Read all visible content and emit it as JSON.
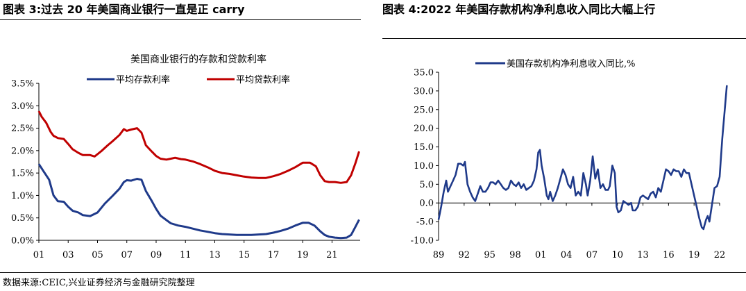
{
  "left_title": "图表 3:过去 20 年美国商业银行一直是正 carry",
  "right_title": "图表 4:2022 年美国存款机构净利息收入同比大幅上行",
  "source": "数据来源:CEIC,兴业证券经济与金融研究院整理",
  "chart_data": [
    {
      "type": "line",
      "title": "美国商业银行的存款和贷款利率",
      "xlabel": "",
      "ylabel": "",
      "x_ticks": [
        "01",
        "03",
        "05",
        "07",
        "09",
        "11",
        "13",
        "15",
        "17",
        "19",
        "21"
      ],
      "y_ticks": [
        "0.0%",
        "0.5%",
        "1.0%",
        "1.5%",
        "2.0%",
        "2.5%",
        "3.0%",
        "3.5%"
      ],
      "xlim": [
        2001,
        2022.92
      ],
      "ylim": [
        0,
        3.5
      ],
      "legend_position": "top",
      "colors": {
        "deposit": "#1f3a8a",
        "loan": "#c00000"
      },
      "series": [
        {
          "name": "平均存款利率",
          "color": "#1f3a8a",
          "points": [
            [
              2001,
              1.7
            ],
            [
              2001.3,
              1.55
            ],
            [
              2001.7,
              1.35
            ],
            [
              2002,
              1.0
            ],
            [
              2002.3,
              0.87
            ],
            [
              2002.7,
              0.86
            ],
            [
              2003,
              0.75
            ],
            [
              2003.3,
              0.66
            ],
            [
              2003.7,
              0.62
            ],
            [
              2004,
              0.56
            ],
            [
              2004.5,
              0.54
            ],
            [
              2005,
              0.62
            ],
            [
              2005.5,
              0.82
            ],
            [
              2006,
              0.98
            ],
            [
              2006.5,
              1.15
            ],
            [
              2006.8,
              1.3
            ],
            [
              2007,
              1.34
            ],
            [
              2007.3,
              1.33
            ],
            [
              2007.7,
              1.37
            ],
            [
              2008,
              1.35
            ],
            [
              2008.3,
              1.1
            ],
            [
              2008.7,
              0.88
            ],
            [
              2009,
              0.7
            ],
            [
              2009.3,
              0.55
            ],
            [
              2009.7,
              0.45
            ],
            [
              2010,
              0.38
            ],
            [
              2010.5,
              0.33
            ],
            [
              2011,
              0.3
            ],
            [
              2011.5,
              0.26
            ],
            [
              2012,
              0.22
            ],
            [
              2012.5,
              0.19
            ],
            [
              2013,
              0.16
            ],
            [
              2013.5,
              0.14
            ],
            [
              2014,
              0.13
            ],
            [
              2014.5,
              0.12
            ],
            [
              2015,
              0.12
            ],
            [
              2015.5,
              0.12
            ],
            [
              2016,
              0.13
            ],
            [
              2016.5,
              0.14
            ],
            [
              2017,
              0.17
            ],
            [
              2017.5,
              0.21
            ],
            [
              2018,
              0.26
            ],
            [
              2018.5,
              0.33
            ],
            [
              2019,
              0.39
            ],
            [
              2019.4,
              0.39
            ],
            [
              2019.8,
              0.33
            ],
            [
              2020.2,
              0.2
            ],
            [
              2020.5,
              0.12
            ],
            [
              2020.8,
              0.08
            ],
            [
              2021.2,
              0.06
            ],
            [
              2021.6,
              0.05
            ],
            [
              2022,
              0.06
            ],
            [
              2022.3,
              0.12
            ],
            [
              2022.6,
              0.3
            ],
            [
              2022.85,
              0.46
            ]
          ]
        },
        {
          "name": "平均贷款利率",
          "color": "#c00000",
          "points": [
            [
              2001,
              2.88
            ],
            [
              2001.2,
              2.75
            ],
            [
              2001.5,
              2.62
            ],
            [
              2001.8,
              2.42
            ],
            [
              2002,
              2.33
            ],
            [
              2002.3,
              2.28
            ],
            [
              2002.7,
              2.26
            ],
            [
              2003,
              2.15
            ],
            [
              2003.3,
              2.03
            ],
            [
              2003.7,
              1.95
            ],
            [
              2004,
              1.9
            ],
            [
              2004.5,
              1.9
            ],
            [
              2004.8,
              1.87
            ],
            [
              2005,
              1.92
            ],
            [
              2005.3,
              2.0
            ],
            [
              2005.7,
              2.12
            ],
            [
              2006,
              2.2
            ],
            [
              2006.5,
              2.35
            ],
            [
              2006.8,
              2.48
            ],
            [
              2007,
              2.44
            ],
            [
              2007.3,
              2.47
            ],
            [
              2007.7,
              2.5
            ],
            [
              2008,
              2.4
            ],
            [
              2008.3,
              2.12
            ],
            [
              2008.7,
              1.98
            ],
            [
              2009,
              1.88
            ],
            [
              2009.3,
              1.82
            ],
            [
              2009.7,
              1.8
            ],
            [
              2010,
              1.82
            ],
            [
              2010.3,
              1.84
            ],
            [
              2010.7,
              1.81
            ],
            [
              2011,
              1.8
            ],
            [
              2011.5,
              1.76
            ],
            [
              2012,
              1.7
            ],
            [
              2012.5,
              1.63
            ],
            [
              2013,
              1.55
            ],
            [
              2013.5,
              1.5
            ],
            [
              2014,
              1.48
            ],
            [
              2014.5,
              1.45
            ],
            [
              2015,
              1.42
            ],
            [
              2015.5,
              1.4
            ],
            [
              2016,
              1.39
            ],
            [
              2016.5,
              1.39
            ],
            [
              2017,
              1.43
            ],
            [
              2017.5,
              1.48
            ],
            [
              2018,
              1.55
            ],
            [
              2018.5,
              1.63
            ],
            [
              2019,
              1.73
            ],
            [
              2019.5,
              1.73
            ],
            [
              2019.9,
              1.65
            ],
            [
              2020.2,
              1.45
            ],
            [
              2020.5,
              1.32
            ],
            [
              2020.8,
              1.3
            ],
            [
              2021.2,
              1.3
            ],
            [
              2021.6,
              1.28
            ],
            [
              2022,
              1.3
            ],
            [
              2022.3,
              1.45
            ],
            [
              2022.6,
              1.72
            ],
            [
              2022.85,
              1.98
            ]
          ]
        }
      ]
    },
    {
      "type": "line",
      "title": "",
      "xlabel": "",
      "ylabel": "",
      "x_ticks": [
        "89",
        "92",
        "95",
        "98",
        "01",
        "04",
        "07",
        "10",
        "13",
        "16",
        "19",
        "22"
      ],
      "y_ticks": [
        "-10.0",
        "-5.0",
        "0.0",
        "5.0",
        "10.0",
        "15.0",
        "20.0",
        "25.0",
        "30.0",
        "35.0"
      ],
      "xlim": [
        1989,
        2022
      ],
      "ylim": [
        -10,
        35
      ],
      "legend_position": "top",
      "colors": {
        "series": "#1f3a8a"
      },
      "series": [
        {
          "name": "美国存款机构净利息收入同比,%",
          "color": "#1f3a8a",
          "points": [
            [
              1989,
              -4.5
            ],
            [
              1989.3,
              -1
            ],
            [
              1989.6,
              3
            ],
            [
              1989.9,
              6
            ],
            [
              1990.1,
              3
            ],
            [
              1990.4,
              4.5
            ],
            [
              1990.7,
              6
            ],
            [
              1991,
              7.5
            ],
            [
              1991.3,
              10.5
            ],
            [
              1991.6,
              10.5
            ],
            [
              1991.9,
              10
            ],
            [
              1992.1,
              11
            ],
            [
              1992.4,
              5
            ],
            [
              1992.7,
              3
            ],
            [
              1993,
              1.5
            ],
            [
              1993.3,
              0.5
            ],
            [
              1993.6,
              2.5
            ],
            [
              1993.9,
              4.5
            ],
            [
              1994.2,
              3
            ],
            [
              1994.5,
              3
            ],
            [
              1994.8,
              4
            ],
            [
              1995.1,
              5.5
            ],
            [
              1995.4,
              5.5
            ],
            [
              1995.7,
              5
            ],
            [
              1996,
              6
            ],
            [
              1996.3,
              5
            ],
            [
              1996.6,
              4
            ],
            [
              1996.9,
              3.5
            ],
            [
              1997.2,
              4
            ],
            [
              1997.5,
              6
            ],
            [
              1997.8,
              5
            ],
            [
              1998.1,
              4.5
            ],
            [
              1998.4,
              5.5
            ],
            [
              1998.7,
              4
            ],
            [
              1999,
              5
            ],
            [
              1999.3,
              3.5
            ],
            [
              1999.6,
              4
            ],
            [
              1999.9,
              4.5
            ],
            [
              2000.2,
              6
            ],
            [
              2000.5,
              9
            ],
            [
              2000.7,
              13.5
            ],
            [
              2000.9,
              14.2
            ],
            [
              2001.1,
              10
            ],
            [
              2001.4,
              6.5
            ],
            [
              2001.7,
              2
            ],
            [
              2001.9,
              1
            ],
            [
              2002.1,
              3
            ],
            [
              2002.4,
              0.5
            ],
            [
              2002.7,
              2
            ],
            [
              2003,
              4
            ],
            [
              2003.3,
              6.5
            ],
            [
              2003.6,
              9
            ],
            [
              2003.9,
              7.5
            ],
            [
              2004.2,
              5
            ],
            [
              2004.5,
              4
            ],
            [
              2004.8,
              7
            ],
            [
              2005.1,
              2
            ],
            [
              2005.4,
              3
            ],
            [
              2005.7,
              2
            ],
            [
              2006,
              8
            ],
            [
              2006.3,
              5
            ],
            [
              2006.5,
              2
            ],
            [
              2006.8,
              6
            ],
            [
              2007.1,
              12.5
            ],
            [
              2007.4,
              6.5
            ],
            [
              2007.7,
              9
            ],
            [
              2008,
              4
            ],
            [
              2008.3,
              5
            ],
            [
              2008.6,
              3.5
            ],
            [
              2008.9,
              3.5
            ],
            [
              2009.1,
              4.5
            ],
            [
              2009.4,
              10
            ],
            [
              2009.7,
              8
            ],
            [
              2009.9,
              -1
            ],
            [
              2010.1,
              -2.5
            ],
            [
              2010.4,
              -2
            ],
            [
              2010.7,
              0.5
            ],
            [
              2011,
              0
            ],
            [
              2011.3,
              -0.5
            ],
            [
              2011.6,
              0
            ],
            [
              2011.8,
              -2
            ],
            [
              2012.1,
              -2
            ],
            [
              2012.4,
              -1
            ],
            [
              2012.7,
              1.5
            ],
            [
              2013,
              2
            ],
            [
              2013.3,
              1.5
            ],
            [
              2013.6,
              1
            ],
            [
              2013.9,
              2.5
            ],
            [
              2014.2,
              3
            ],
            [
              2014.5,
              1.5
            ],
            [
              2014.8,
              4
            ],
            [
              2015.1,
              3
            ],
            [
              2015.4,
              6
            ],
            [
              2015.7,
              9
            ],
            [
              2016,
              8.5
            ],
            [
              2016.3,
              7.5
            ],
            [
              2016.6,
              9
            ],
            [
              2016.9,
              8.5
            ],
            [
              2017.2,
              8.5
            ],
            [
              2017.5,
              7
            ],
            [
              2017.8,
              9
            ],
            [
              2018.1,
              8
            ],
            [
              2018.4,
              8
            ],
            [
              2018.7,
              5
            ],
            [
              2019,
              2
            ],
            [
              2019.3,
              -1
            ],
            [
              2019.6,
              -4
            ],
            [
              2019.9,
              -6.5
            ],
            [
              2020.1,
              -7
            ],
            [
              2020.4,
              -4.5
            ],
            [
              2020.6,
              -3.5
            ],
            [
              2020.8,
              -5
            ],
            [
              2021,
              -2
            ],
            [
              2021.2,
              1
            ],
            [
              2021.4,
              4
            ],
            [
              2021.7,
              4.5
            ],
            [
              2022,
              7
            ],
            [
              2022.3,
              17
            ],
            [
              2022.6,
              25
            ],
            [
              2022.85,
              31.5
            ]
          ]
        }
      ]
    }
  ]
}
